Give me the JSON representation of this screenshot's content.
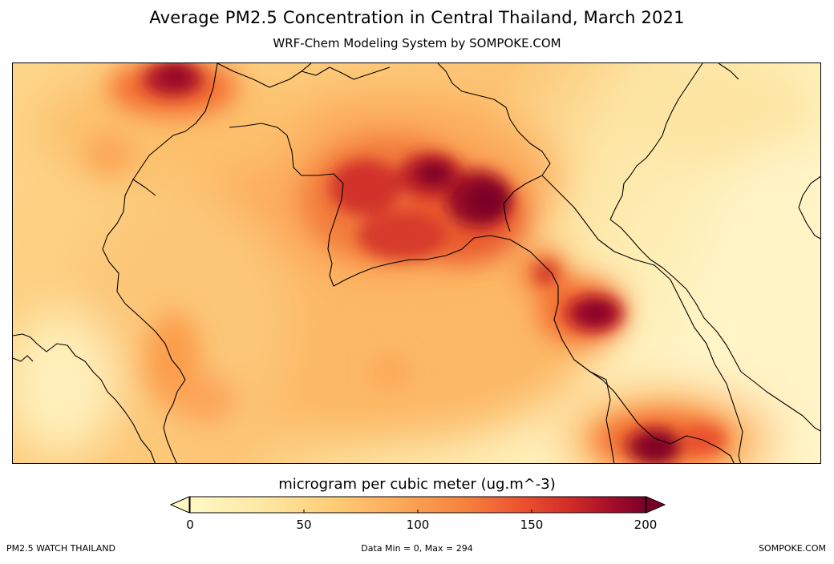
{
  "header": {
    "title": "Average PM2.5 Concentration in  Central Thailand, March 2021",
    "subtitle": "WRF-Chem Modeling System by SOMPOKE.COM"
  },
  "map": {
    "region": "Central Thailand",
    "layers": [
      "pm25-concentration",
      "coastlines",
      "country-borders"
    ],
    "hotspots": [
      {
        "area": "northwest",
        "level": "high"
      },
      {
        "area": "north-central",
        "level": "very-high"
      },
      {
        "area": "northeast-central",
        "level": "peak"
      },
      {
        "area": "east-border",
        "level": "very-high"
      },
      {
        "area": "southeast",
        "level": "very-high"
      }
    ]
  },
  "colorbar": {
    "label": "microgram per cubic meter (ug.m^-3)",
    "ticks": [
      "0",
      "50",
      "100",
      "150",
      "200"
    ],
    "min": 0,
    "max": 200,
    "extend": "both",
    "colors": [
      "#fff8c4",
      "#fee396",
      "#fdbf6a",
      "#fd9a46",
      "#f3692f",
      "#db3328",
      "#b30f2a",
      "#7a0028"
    ]
  },
  "footer": {
    "left": "PM2.5 WATCH THAILAND",
    "middle": "Data Min = 0, Max = 294",
    "right": "SOMPOKE.COM"
  }
}
